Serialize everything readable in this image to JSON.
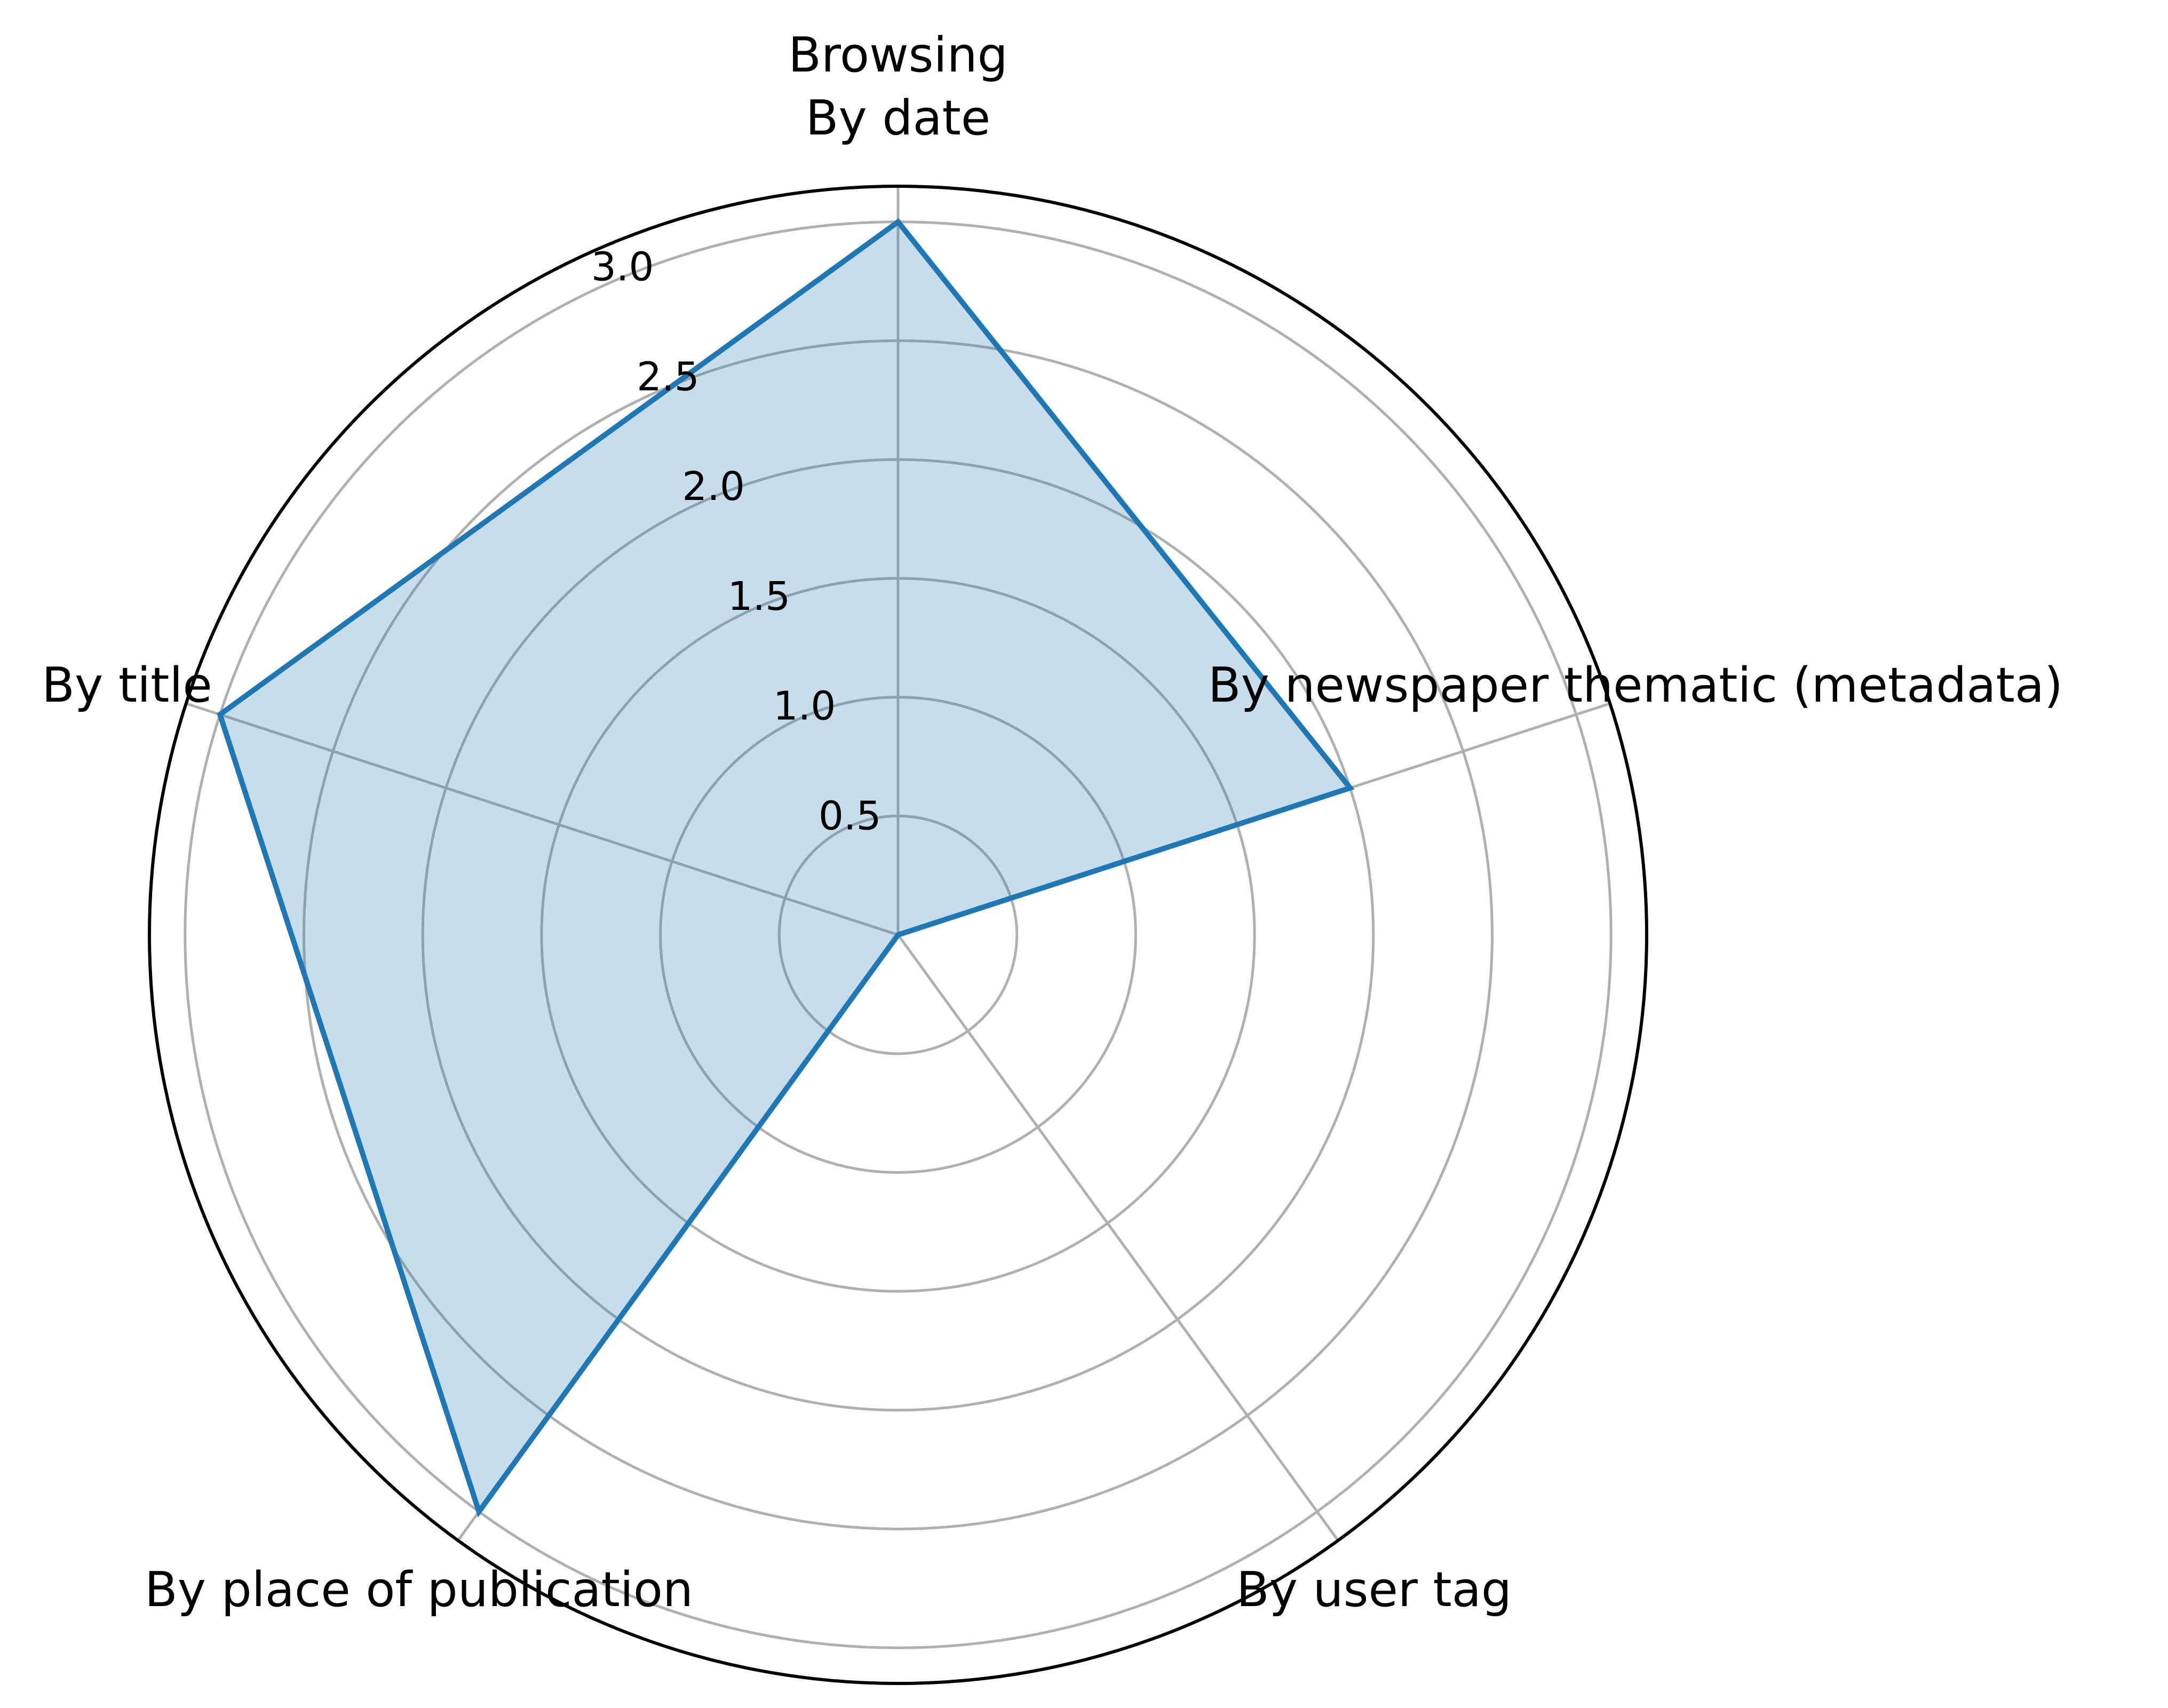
{
  "chart_data": {
    "type": "radar",
    "title_lines": [
      "Browsing"
    ],
    "categories": [
      "By date",
      "By newspaper thematic (metadata)",
      "By user tag",
      "By place of publication",
      "By title"
    ],
    "series": [
      {
        "name": "Browsing",
        "values": [
          3,
          2,
          0,
          3,
          3
        ]
      }
    ],
    "r_ticks": [
      "0.5",
      "1.0",
      "1.5",
      "2.0",
      "2.5",
      "3.0"
    ],
    "r_tick_values": [
      0.5,
      1.0,
      1.5,
      2.0,
      2.5,
      3.0
    ],
    "rlim": [
      0,
      3.15
    ],
    "grid": true,
    "colors": {
      "line": "#1f77b4",
      "fill": "#1f77b4",
      "grid": "#b0b0b0",
      "frame": "#000000"
    }
  }
}
